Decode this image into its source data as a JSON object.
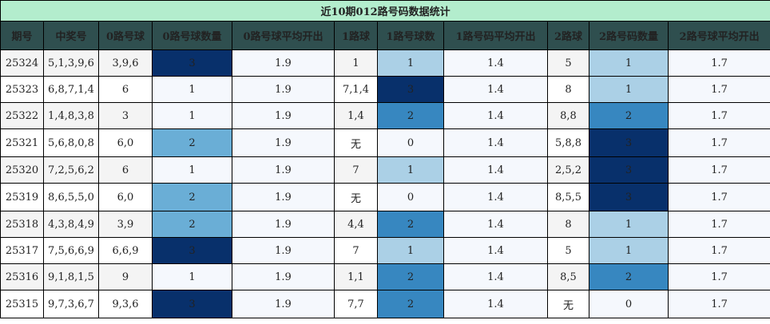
{
  "title": "近10期012路号码数据统计",
  "headers": [
    "期号",
    "中奖号",
    "0路号球",
    "0路号球数量",
    "0路号球平均开出",
    "1路球",
    "1路号球数",
    "1路号码平均开出",
    "2路球",
    "2路号码数量",
    "2路号球平均开出"
  ],
  "colors": {
    "title_bg": "#b3edcd",
    "header_bg": "#2f4f4f",
    "count_0": "#f5f8fd",
    "count_1": "#abd0e6",
    "count_2_light": "#6aaed6",
    "count_2_mid": "#3787c0",
    "count_3": "#08306b"
  },
  "rows": [
    {
      "issue": "25324",
      "numbers": "5,1,3,9,6",
      "r0": "3,9,6",
      "r0n": "3",
      "r0avg": "1.9",
      "r1": "1",
      "r1n": "1",
      "r1avg": "1.4",
      "r2": "5",
      "r2n": "1",
      "r2avg": "1.7"
    },
    {
      "issue": "25323",
      "numbers": "6,8,7,1,4",
      "r0": "6",
      "r0n": "1",
      "r0avg": "1.9",
      "r1": "7,1,4",
      "r1n": "3",
      "r1avg": "1.4",
      "r2": "8",
      "r2n": "1",
      "r2avg": "1.7"
    },
    {
      "issue": "25322",
      "numbers": "1,4,8,3,8",
      "r0": "3",
      "r0n": "1",
      "r0avg": "1.9",
      "r1": "1,4",
      "r1n": "2",
      "r1avg": "1.4",
      "r2": "8,8",
      "r2n": "2",
      "r2avg": "1.7"
    },
    {
      "issue": "25321",
      "numbers": "5,6,8,0,8",
      "r0": "6,0",
      "r0n": "2",
      "r0avg": "1.9",
      "r1": "无",
      "r1n": "0",
      "r1avg": "1.4",
      "r2": "5,8,8",
      "r2n": "3",
      "r2avg": "1.7"
    },
    {
      "issue": "25320",
      "numbers": "7,2,5,6,2",
      "r0": "6",
      "r0n": "1",
      "r0avg": "1.9",
      "r1": "7",
      "r1n": "1",
      "r1avg": "1.4",
      "r2": "2,5,2",
      "r2n": "3",
      "r2avg": "1.7"
    },
    {
      "issue": "25319",
      "numbers": "8,6,5,5,0",
      "r0": "6,0",
      "r0n": "2",
      "r0avg": "1.9",
      "r1": "无",
      "r1n": "0",
      "r1avg": "1.4",
      "r2": "8,5,5",
      "r2n": "3",
      "r2avg": "1.7"
    },
    {
      "issue": "25318",
      "numbers": "4,3,8,4,9",
      "r0": "3,9",
      "r0n": "2",
      "r0avg": "1.9",
      "r1": "4,4",
      "r1n": "2",
      "r1avg": "1.4",
      "r2": "8",
      "r2n": "1",
      "r2avg": "1.7"
    },
    {
      "issue": "25317",
      "numbers": "7,5,6,6,9",
      "r0": "6,6,9",
      "r0n": "3",
      "r0avg": "1.9",
      "r1": "7",
      "r1n": "1",
      "r1avg": "1.4",
      "r2": "5",
      "r2n": "1",
      "r2avg": "1.7"
    },
    {
      "issue": "25316",
      "numbers": "9,1,8,1,5",
      "r0": "9",
      "r0n": "1",
      "r0avg": "1.9",
      "r1": "1,1",
      "r1n": "2",
      "r1avg": "1.4",
      "r2": "8,5",
      "r2n": "2",
      "r2avg": "1.7"
    },
    {
      "issue": "25315",
      "numbers": "9,7,3,6,7",
      "r0": "9,3,6",
      "r0n": "3",
      "r0avg": "1.9",
      "r1": "7,7",
      "r1n": "2",
      "r1avg": "1.4",
      "r2": "无",
      "r2n": "0",
      "r2avg": "1.7"
    }
  ]
}
